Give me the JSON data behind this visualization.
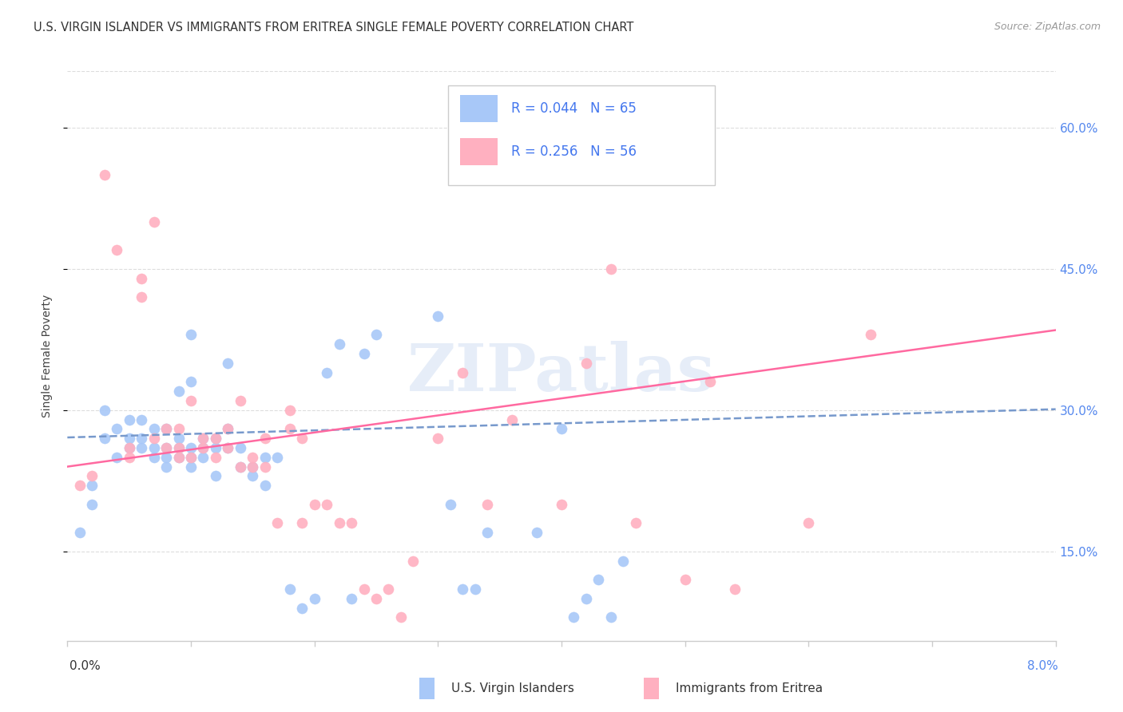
{
  "title": "U.S. VIRGIN ISLANDER VS IMMIGRANTS FROM ERITREA SINGLE FEMALE POVERTY CORRELATION CHART",
  "source": "Source: ZipAtlas.com",
  "ylabel": "Single Female Poverty",
  "ytick_labels": [
    "15.0%",
    "30.0%",
    "45.0%",
    "60.0%"
  ],
  "ytick_vals": [
    0.15,
    0.3,
    0.45,
    0.6
  ],
  "xlim": [
    0.0,
    0.08
  ],
  "ylim": [
    0.055,
    0.66
  ],
  "legend1_R": "0.044",
  "legend1_N": "65",
  "legend2_R": "0.256",
  "legend2_N": "56",
  "color_blue": "#A8C8F8",
  "color_pink": "#FFB0C0",
  "color_blue_line": "#7799CC",
  "color_pink_line": "#FF69A0",
  "watermark": "ZIPatlas",
  "blue_scatter_x": [
    0.001,
    0.002,
    0.002,
    0.003,
    0.003,
    0.004,
    0.004,
    0.005,
    0.005,
    0.005,
    0.006,
    0.006,
    0.006,
    0.007,
    0.007,
    0.007,
    0.008,
    0.008,
    0.008,
    0.008,
    0.009,
    0.009,
    0.009,
    0.009,
    0.01,
    0.01,
    0.01,
    0.01,
    0.01,
    0.011,
    0.011,
    0.011,
    0.012,
    0.012,
    0.012,
    0.013,
    0.013,
    0.013,
    0.014,
    0.014,
    0.015,
    0.015,
    0.016,
    0.016,
    0.017,
    0.018,
    0.019,
    0.02,
    0.021,
    0.022,
    0.023,
    0.024,
    0.025,
    0.03,
    0.031,
    0.032,
    0.033,
    0.034,
    0.038,
    0.04,
    0.041,
    0.042,
    0.043,
    0.044,
    0.045
  ],
  "blue_scatter_y": [
    0.17,
    0.2,
    0.22,
    0.27,
    0.3,
    0.25,
    0.28,
    0.26,
    0.27,
    0.29,
    0.26,
    0.27,
    0.29,
    0.25,
    0.26,
    0.28,
    0.24,
    0.25,
    0.26,
    0.28,
    0.25,
    0.26,
    0.27,
    0.32,
    0.24,
    0.25,
    0.26,
    0.33,
    0.38,
    0.25,
    0.26,
    0.27,
    0.23,
    0.26,
    0.27,
    0.26,
    0.28,
    0.35,
    0.24,
    0.26,
    0.23,
    0.24,
    0.22,
    0.25,
    0.25,
    0.11,
    0.09,
    0.1,
    0.34,
    0.37,
    0.1,
    0.36,
    0.38,
    0.4,
    0.2,
    0.11,
    0.11,
    0.17,
    0.17,
    0.28,
    0.08,
    0.1,
    0.12,
    0.08,
    0.14
  ],
  "pink_scatter_x": [
    0.001,
    0.002,
    0.003,
    0.004,
    0.005,
    0.005,
    0.006,
    0.006,
    0.007,
    0.007,
    0.008,
    0.008,
    0.009,
    0.009,
    0.009,
    0.01,
    0.01,
    0.011,
    0.011,
    0.012,
    0.012,
    0.013,
    0.013,
    0.014,
    0.014,
    0.015,
    0.015,
    0.016,
    0.016,
    0.017,
    0.018,
    0.018,
    0.019,
    0.019,
    0.02,
    0.021,
    0.022,
    0.023,
    0.024,
    0.025,
    0.026,
    0.027,
    0.028,
    0.03,
    0.032,
    0.034,
    0.036,
    0.04,
    0.042,
    0.044,
    0.046,
    0.05,
    0.052,
    0.054,
    0.06,
    0.065
  ],
  "pink_scatter_y": [
    0.22,
    0.23,
    0.55,
    0.47,
    0.25,
    0.26,
    0.42,
    0.44,
    0.27,
    0.5,
    0.26,
    0.28,
    0.25,
    0.26,
    0.28,
    0.25,
    0.31,
    0.26,
    0.27,
    0.25,
    0.27,
    0.26,
    0.28,
    0.24,
    0.31,
    0.24,
    0.25,
    0.24,
    0.27,
    0.18,
    0.28,
    0.3,
    0.18,
    0.27,
    0.2,
    0.2,
    0.18,
    0.18,
    0.11,
    0.1,
    0.11,
    0.08,
    0.14,
    0.27,
    0.34,
    0.2,
    0.29,
    0.2,
    0.35,
    0.45,
    0.18,
    0.12,
    0.33,
    0.11,
    0.18,
    0.38
  ],
  "blue_line_x": [
    0.0,
    0.08
  ],
  "blue_line_y": [
    0.271,
    0.301
  ],
  "pink_line_x": [
    0.0,
    0.08
  ],
  "pink_line_y": [
    0.24,
    0.385
  ]
}
